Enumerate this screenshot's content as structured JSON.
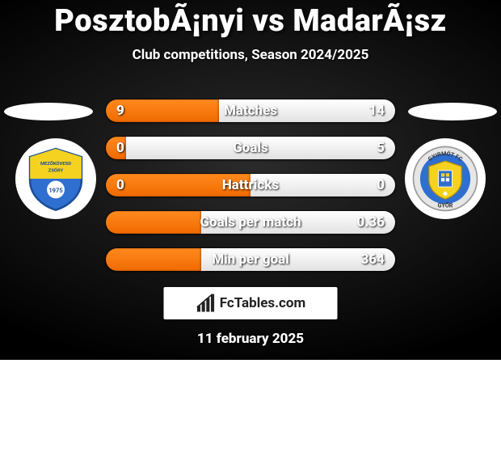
{
  "title": "PosztobÃ¡nyi vs MadarÃ¡sz",
  "subtitle": "Club competitions, Season 2024/2025",
  "date": "11 february 2025",
  "brand": "FcTables.com",
  "colors": {
    "bg_top": "#000000",
    "bg_bottom": "#2b2b2b",
    "pill_left_1": "#ff8a1f",
    "pill_left_2": "#f06a00",
    "pill_right": "#ffffff",
    "ellipse": "#ffffff",
    "badge_bg": "#ffffff"
  },
  "left_club": {
    "name": "Mezőkövesd Zsóry",
    "shield_top": "#f4d21f",
    "shield_bottom": "#2f6fd0",
    "year": "1975"
  },
  "right_club": {
    "name": "Gyirmót FC Győr",
    "shield_top": "#2f6fd0",
    "shield_bottom": "#f4d21f",
    "ring": "#e6e6e6",
    "year": "2001"
  },
  "rows": [
    {
      "label": "Matches",
      "left": "9",
      "right": "14",
      "fill_pct": 39
    },
    {
      "label": "Goals",
      "left": "0",
      "right": "5",
      "fill_pct": 7
    },
    {
      "label": "Hattricks",
      "left": "0",
      "right": "0",
      "fill_pct": 50
    },
    {
      "label": "Goals per match",
      "left": "",
      "right": "0.36",
      "fill_pct": 33
    },
    {
      "label": "Min per goal",
      "left": "",
      "right": "364",
      "fill_pct": 33
    }
  ]
}
